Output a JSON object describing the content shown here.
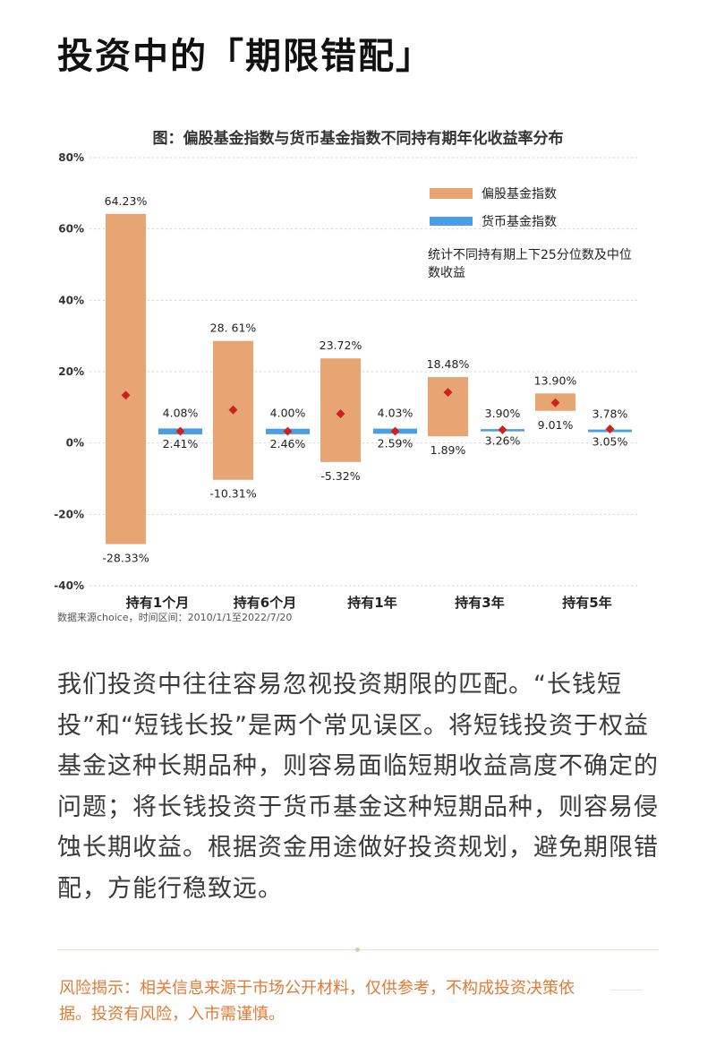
{
  "page": {
    "headline": "投资中的「期限错配」",
    "body_text": "我们投资中往往容易忽视投资期限的匹配。“长钱短投”和“短钱长投”是两个常见误区。将短钱投资于权益基金这种长期品种，则容易面临短期收益高度不确定的问题；将长钱投资于货币基金这种短期品种，则容易侵蚀长期收益。根据资金用途做好投资规划，避免期限错配，方能行稳致远。",
    "risk_text": "风险揭示：相关信息来源于市场公开材料，仅供参考，不构成投资决策依据。投资有风险，入市需谨慎。"
  },
  "chart_data": {
    "type": "bar",
    "subtype": "floating-range-with-median",
    "title": "图：偏股基金指数与货币基金指数不同持有期年化收益率分布",
    "categories": [
      "持有1个月",
      "持有6个月",
      "持有1年",
      "持有3年",
      "持有5年"
    ],
    "ylim": [
      -40,
      80
    ],
    "yticks": [
      -40,
      -20,
      0,
      20,
      40,
      60,
      80
    ],
    "ytick_labels": [
      "-40%",
      "-20%",
      "0%",
      "20%",
      "40%",
      "60%",
      "80%"
    ],
    "grid": true,
    "legend_position": "top-right",
    "note": "统计不同持有期上下25分位数及中位数收益",
    "source": "数据来源choice，时间区间：2010/1/1至2022/7/20",
    "series": [
      {
        "name": "偏股基金指数",
        "color": "#e8a574",
        "upper": [
          64.23,
          28.61,
          23.72,
          18.48,
          13.9
        ],
        "lower": [
          -28.33,
          -10.31,
          -5.32,
          1.89,
          9.01
        ],
        "median": [
          13.4,
          9.3,
          8.2,
          14.2,
          11.3
        ],
        "upper_labels": [
          "64.23%",
          "28. 61%",
          "23.72%",
          "18.48%",
          "13.90%"
        ],
        "lower_labels": [
          "-28.33%",
          "-10.31%",
          "-5.32%",
          "1.89%",
          "9.01%"
        ]
      },
      {
        "name": "货币基金指数",
        "color": "#4a9fe4",
        "upper": [
          4.08,
          4.0,
          4.03,
          3.9,
          3.78
        ],
        "lower": [
          2.41,
          2.46,
          2.59,
          3.26,
          3.05
        ],
        "median": [
          3.3,
          3.3,
          3.3,
          3.7,
          3.9
        ],
        "upper_labels": [
          "4.08%",
          "4.00%",
          "4.03%",
          "3.90%",
          "3.78%"
        ],
        "lower_labels": [
          "2.41%",
          "2.46%",
          "2.59%",
          "3.26%",
          "3.05%"
        ]
      }
    ],
    "median_marker_color": "#d0201c"
  }
}
